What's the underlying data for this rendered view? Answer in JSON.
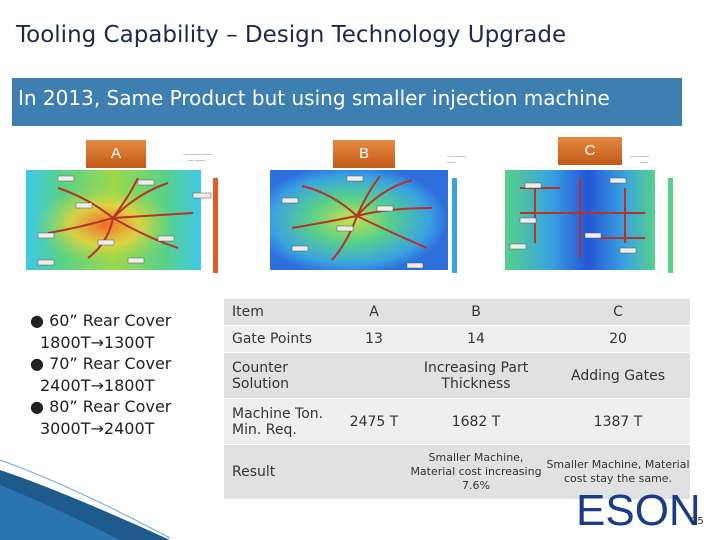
{
  "title": "Tooling Capability – Design Technology Upgrade",
  "banner": "In 2013, Same Product but using smaller injection machine",
  "labels": {
    "a": "A",
    "b": "B",
    "c": "C"
  },
  "bullets": [
    {
      "marker": "●",
      "line1": "60”  Rear Cover",
      "line2": "1800T→1300T"
    },
    {
      "marker": "●",
      "line1": "70”  Rear Cover",
      "line2": "2400T→1800T"
    },
    {
      "marker": "●",
      "line1": "80”  Rear Cover",
      "line2": "3000T→2400T"
    }
  ],
  "table": {
    "header": [
      "Item",
      "A",
      "B",
      "C"
    ],
    "gate_points": [
      "Gate Points",
      "13",
      "14",
      "20"
    ],
    "counter_solution": [
      "Counter Solution",
      "",
      "Increasing Part Thickness",
      "Adding Gates"
    ],
    "machine_ton": [
      "Machine Ton. Min. Req.",
      "2475 T",
      "1682 T",
      "1387 T"
    ],
    "result": [
      "Result",
      "",
      "Smaller Machine, Material cost increasing 7.6%",
      "Smaller Machine, Material cost  stay the same."
    ]
  },
  "logo": "ESON",
  "page_number": "25",
  "colors": {
    "title": "#1b2a4a",
    "banner": "#3d7fb0",
    "tag": "#d0692a",
    "logo": "#1a3a8a"
  }
}
